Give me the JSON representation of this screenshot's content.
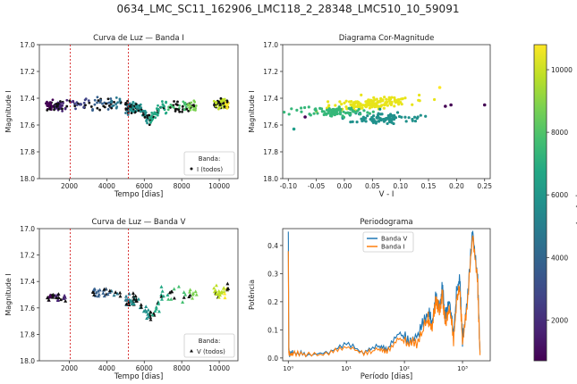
{
  "suptitle": "0634_LMC_SC11_162906_LMC118_2_28348_LMC510_10_59091",
  "colorbar": {
    "label": "Tempo [dias]",
    "ticks": [
      2000,
      4000,
      6000,
      8000,
      10000
    ],
    "range": [
      700,
      10800
    ]
  },
  "chart_data": [
    {
      "type": "scatter",
      "title": "Curva de Luz — Banda I",
      "xlabel": "Tempo [dias]",
      "ylabel": "Magnitude I",
      "xlim": [
        400,
        11000
      ],
      "ylim": [
        18.0,
        17.0
      ],
      "xticks": [
        2000,
        4000,
        6000,
        8000,
        10000
      ],
      "yticks": [
        17.0,
        17.2,
        17.4,
        17.6,
        17.8,
        18.0
      ],
      "vlines": [
        2050,
        5150
      ],
      "legend": {
        "title": "Banda:",
        "entries": [
          "I (todos)"
        ],
        "placement": "lower-right"
      },
      "segments": [
        {
          "x": [
            700,
            1900
          ],
          "y": 17.46,
          "color": "#440154"
        },
        {
          "x": [
            2000,
            4800
          ],
          "y": 17.44,
          "color": "#31688e"
        },
        {
          "x": [
            5000,
            5600
          ],
          "y": 17.47,
          "color": "#26828e"
        },
        {
          "x": [
            5600,
            6800
          ],
          "y": 17.55,
          "color": "#1f9e89"
        },
        {
          "x": [
            6800,
            8800
          ],
          "y": 17.46,
          "color": "#35b779"
        },
        {
          "x": [
            9700,
            10500
          ],
          "y": 17.44,
          "color": "#dde318"
        }
      ]
    },
    {
      "type": "scatter",
      "title": "Diagrama Cor-Magnitude",
      "xlabel": "V - I",
      "ylabel": "Magnitude I",
      "xlim": [
        -0.11,
        0.26
      ],
      "ylim": [
        18.0,
        17.0
      ],
      "xticks": [
        -0.1,
        -0.05,
        0.0,
        0.05,
        0.1,
        0.15,
        0.2,
        0.25
      ],
      "yticks": [
        17.0,
        17.2,
        17.4,
        17.6,
        17.8,
        18.0
      ],
      "clusters": [
        {
          "cx": 0.05,
          "cy": 17.44,
          "sx": 0.035,
          "sy": 0.03,
          "color": "#e8e419"
        },
        {
          "cx": 0.07,
          "cy": 17.55,
          "sx": 0.035,
          "sy": 0.04,
          "color": "#21918c"
        },
        {
          "cx": -0.02,
          "cy": 17.5,
          "sx": 0.03,
          "sy": 0.03,
          "color": "#35b779"
        }
      ],
      "outliers": [
        {
          "x": -0.09,
          "y": 17.63,
          "color": "#1f9e89"
        },
        {
          "x": -0.07,
          "y": 17.54,
          "color": "#440154"
        },
        {
          "x": 0.17,
          "y": 17.32,
          "color": "#fde725"
        },
        {
          "x": 0.18,
          "y": 17.46,
          "color": "#440154"
        },
        {
          "x": 0.19,
          "y": 17.45,
          "color": "#440154"
        },
        {
          "x": 0.25,
          "y": 17.45,
          "color": "#440154"
        }
      ]
    },
    {
      "type": "scatter",
      "title": "Curva de Luz — Banda V",
      "xlabel": "Tempo [dias]",
      "ylabel": "Magnitude I",
      "xlim": [
        400,
        11000
      ],
      "ylim": [
        18.0,
        17.0
      ],
      "xticks": [
        2000,
        4000,
        6000,
        8000,
        10000
      ],
      "yticks": [
        17.0,
        17.2,
        17.4,
        17.6,
        17.8,
        18.0
      ],
      "vlines": [
        2050,
        5150
      ],
      "legend": {
        "title": "Banda:",
        "entries": [
          "V (todos)"
        ],
        "placement": "lower-right"
      },
      "segments": [
        {
          "x": [
            800,
            1900
          ],
          "y": 17.51,
          "color": "#440154"
        },
        {
          "x": [
            3200,
            4800
          ],
          "y": 17.49,
          "color": "#31688e"
        },
        {
          "x": [
            5000,
            5600
          ],
          "y": 17.55,
          "color": "#26828e"
        },
        {
          "x": [
            5600,
            6800
          ],
          "y": 17.62,
          "color": "#1f9e89"
        },
        {
          "x": [
            6800,
            8800
          ],
          "y": 17.5,
          "color": "#35b779"
        },
        {
          "x": [
            9700,
            10500
          ],
          "y": 17.48,
          "color": "#dde318"
        }
      ]
    },
    {
      "type": "line",
      "title": "Periodograma",
      "xlabel": "Período [dias]",
      "ylabel": "Potência",
      "xscale": "log",
      "xlim": [
        0.8,
        3000
      ],
      "ylim": [
        -0.01,
        0.46
      ],
      "xticklabels": [
        "10⁰",
        "10¹",
        "10²",
        "10³"
      ],
      "yticks": [
        0.0,
        0.1,
        0.2,
        0.3,
        0.4
      ],
      "legend": {
        "entries": [
          "Banda V",
          "Banda I"
        ],
        "placement": "top-center"
      },
      "series": [
        {
          "name": "Banda V",
          "color": "#1f77b4",
          "x": [
            1.0,
            1.02,
            1.05,
            1.2,
            2,
            5,
            10,
            20,
            35,
            50,
            80,
            120,
            180,
            250,
            300,
            350,
            400,
            450,
            500,
            600,
            700,
            800,
            900,
            1000,
            1200,
            1500,
            1800,
            2000
          ],
          "y": [
            0.45,
            0.03,
            0.01,
            0.02,
            0.01,
            0.02,
            0.05,
            0.02,
            0.04,
            0.03,
            0.09,
            0.05,
            0.08,
            0.16,
            0.12,
            0.22,
            0.18,
            0.25,
            0.14,
            0.2,
            0.08,
            0.24,
            0.27,
            0.06,
            0.2,
            0.45,
            0.3,
            0.02
          ]
        },
        {
          "name": "Banda I",
          "color": "#ff7f0e",
          "x": [
            1.0,
            1.02,
            1.05,
            1.2,
            2,
            5,
            10,
            20,
            35,
            50,
            80,
            120,
            180,
            250,
            300,
            350,
            400,
            450,
            500,
            600,
            700,
            800,
            900,
            1000,
            1200,
            1500,
            1800,
            2000
          ],
          "y": [
            0.38,
            0.02,
            0.01,
            0.015,
            0.01,
            0.015,
            0.04,
            0.015,
            0.03,
            0.02,
            0.07,
            0.04,
            0.06,
            0.14,
            0.1,
            0.2,
            0.16,
            0.22,
            0.12,
            0.18,
            0.06,
            0.22,
            0.24,
            0.05,
            0.18,
            0.44,
            0.28,
            0.01
          ]
        }
      ]
    }
  ]
}
